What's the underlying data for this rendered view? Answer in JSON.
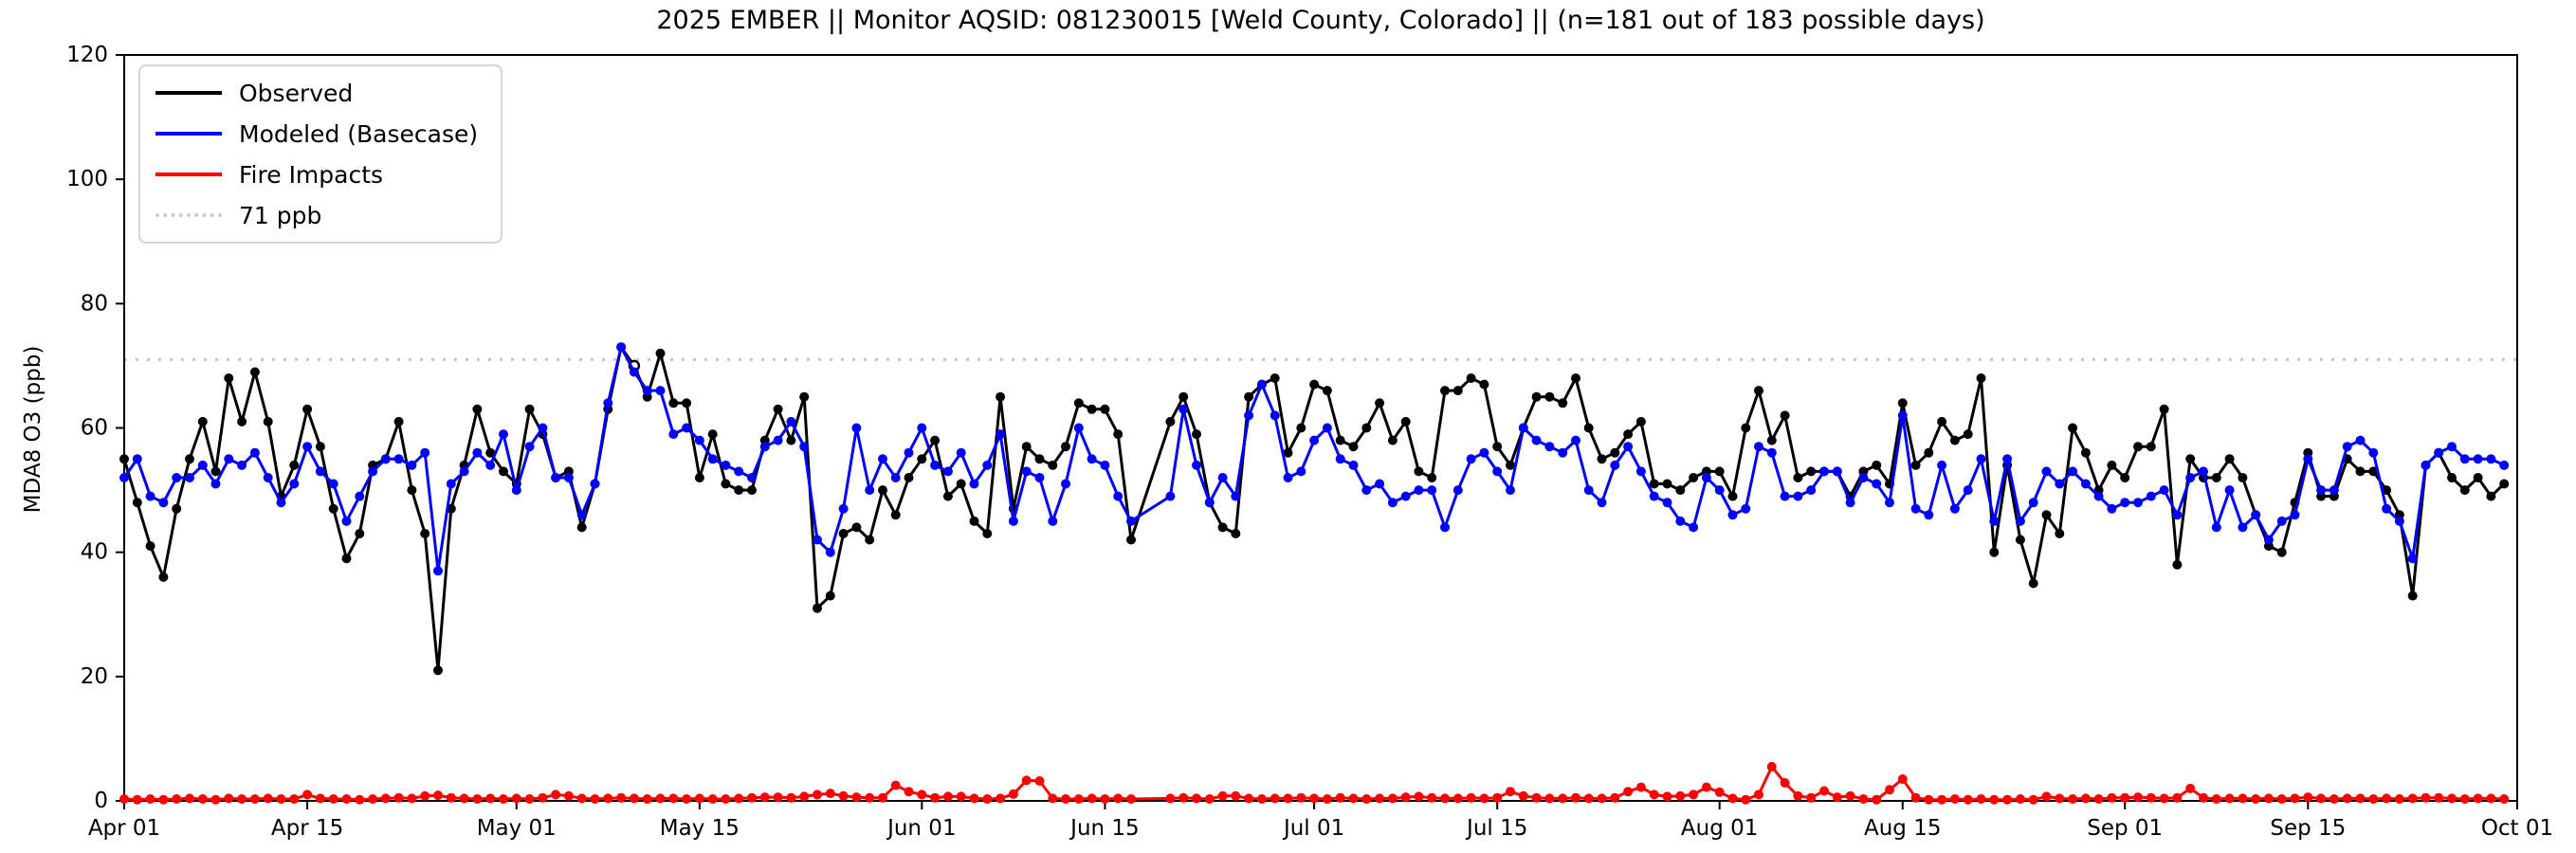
{
  "chart_data": {
    "type": "line",
    "title": "2025 EMBER || Monitor AQSID: 081230015 [Weld County, Colorado] || (n=181 out of 183 possible days)",
    "xlabel": "",
    "ylabel": "MDA8 O3 (ppb)",
    "ylim": [
      0,
      120
    ],
    "yticks": [
      0,
      20,
      40,
      60,
      80,
      100,
      120
    ],
    "x_total_days": 183,
    "xticks": [
      {
        "day": 0,
        "label": "Apr 01"
      },
      {
        "day": 14,
        "label": "Apr 15"
      },
      {
        "day": 30,
        "label": "May 01"
      },
      {
        "day": 44,
        "label": "May 15"
      },
      {
        "day": 61,
        "label": "Jun 01"
      },
      {
        "day": 75,
        "label": "Jun 15"
      },
      {
        "day": 91,
        "label": "Jul 01"
      },
      {
        "day": 105,
        "label": "Jul 15"
      },
      {
        "day": 122,
        "label": "Aug 01"
      },
      {
        "day": 136,
        "label": "Aug 15"
      },
      {
        "day": 153,
        "label": "Sep 01"
      },
      {
        "day": 167,
        "label": "Sep 15"
      },
      {
        "day": 183,
        "label": "Oct 01"
      }
    ],
    "grid": false,
    "legend_position": "upper-left",
    "threshold": {
      "value": 71,
      "label": "71 ppb",
      "color": "#c9c9c9",
      "style": "dotted"
    },
    "missing_days_note": "two days (mid June) have no data; n=181 of 183",
    "open_marker": {
      "series": "Observed",
      "day_index": 39,
      "note": "white-faced marker at ~71 ppb in early May"
    },
    "series": [
      {
        "name": "Observed",
        "color": "#000000",
        "marker": "circle",
        "values": [
          55,
          48,
          41,
          36,
          47,
          55,
          61,
          53,
          68,
          61,
          69,
          61,
          49,
          54,
          63,
          57,
          47,
          39,
          43,
          54,
          55,
          61,
          50,
          43,
          21,
          47,
          54,
          63,
          56,
          53,
          51,
          63,
          59,
          52,
          53,
          44,
          51,
          63,
          73,
          70,
          65,
          72,
          64,
          64,
          52,
          59,
          51,
          50,
          50,
          58,
          63,
          58,
          65,
          31,
          33,
          43,
          44,
          42,
          50,
          46,
          52,
          55,
          58,
          49,
          51,
          45,
          43,
          65,
          47,
          57,
          55,
          54,
          57,
          64,
          63,
          63,
          59,
          42,
          null,
          null,
          61,
          65,
          59,
          48,
          44,
          43,
          65,
          67,
          68,
          56,
          60,
          67,
          66,
          58,
          57,
          60,
          64,
          58,
          61,
          53,
          52,
          66,
          66,
          68,
          67,
          57,
          54,
          60,
          65,
          65,
          64,
          68,
          60,
          55,
          56,
          59,
          61,
          51,
          51,
          50,
          52,
          53,
          53,
          49,
          60,
          66,
          58,
          62,
          52,
          53,
          53,
          53,
          49,
          53,
          54,
          51,
          64,
          54,
          56,
          61,
          58,
          59,
          68,
          40,
          54,
          42,
          35,
          46,
          43,
          60,
          56,
          50,
          54,
          52,
          57,
          57,
          63,
          38,
          55,
          52,
          52,
          55,
          52,
          46,
          41,
          40,
          48,
          56,
          49,
          49,
          55,
          53,
          53,
          50,
          46,
          33,
          54,
          56,
          52,
          50,
          52,
          49,
          51
        ]
      },
      {
        "name": "Modeled (Basecase)",
        "color": "#0000ff",
        "marker": "circle",
        "values": [
          52,
          55,
          49,
          48,
          52,
          52,
          54,
          51,
          55,
          54,
          56,
          52,
          48,
          51,
          57,
          53,
          51,
          45,
          49,
          53,
          55,
          55,
          54,
          56,
          37,
          51,
          53,
          56,
          54,
          59,
          50,
          57,
          60,
          52,
          52,
          46,
          51,
          64,
          73,
          69,
          66,
          66,
          59,
          60,
          58,
          55,
          54,
          53,
          52,
          57,
          58,
          61,
          57,
          42,
          40,
          47,
          60,
          50,
          55,
          52,
          56,
          60,
          54,
          53,
          56,
          51,
          54,
          59,
          45,
          53,
          52,
          45,
          51,
          60,
          55,
          54,
          49,
          45,
          null,
          null,
          49,
          63,
          54,
          48,
          52,
          49,
          62,
          67,
          62,
          52,
          53,
          58,
          60,
          55,
          54,
          50,
          51,
          48,
          49,
          50,
          50,
          44,
          50,
          55,
          56,
          53,
          50,
          60,
          58,
          57,
          56,
          58,
          50,
          48,
          54,
          57,
          53,
          49,
          48,
          45,
          44,
          52,
          50,
          46,
          47,
          57,
          56,
          49,
          49,
          50,
          53,
          53,
          48,
          52,
          51,
          48,
          62,
          47,
          46,
          54,
          47,
          50,
          55,
          45,
          55,
          45,
          48,
          53,
          51,
          53,
          51,
          49,
          47,
          48,
          48,
          49,
          50,
          46,
          52,
          53,
          44,
          50,
          44,
          46,
          42,
          45,
          46,
          55,
          50,
          50,
          57,
          58,
          56,
          47,
          45,
          39,
          54,
          56,
          57,
          55,
          55,
          55,
          54
        ]
      },
      {
        "name": "Fire Impacts",
        "color": "#ff0000",
        "marker": "circle",
        "values": [
          0.3,
          0.2,
          0.3,
          0.2,
          0.3,
          0.4,
          0.3,
          0.2,
          0.4,
          0.3,
          0.3,
          0.4,
          0.3,
          0.3,
          1.0,
          0.4,
          0.3,
          0.3,
          0.2,
          0.3,
          0.4,
          0.5,
          0.4,
          0.8,
          0.9,
          0.5,
          0.4,
          0.3,
          0.4,
          0.3,
          0.4,
          0.3,
          0.5,
          1.0,
          0.8,
          0.4,
          0.3,
          0.4,
          0.5,
          0.4,
          0.3,
          0.4,
          0.4,
          0.3,
          0.4,
          0.3,
          0.3,
          0.4,
          0.5,
          0.6,
          0.6,
          0.5,
          0.7,
          1.0,
          1.2,
          0.8,
          0.6,
          0.5,
          0.5,
          2.5,
          1.5,
          1.0,
          0.5,
          0.7,
          0.7,
          0.4,
          0.3,
          0.4,
          1.1,
          3.3,
          3.2,
          0.4,
          0.3,
          0.3,
          0.4,
          0.3,
          0.4,
          0.3,
          null,
          null,
          0.4,
          0.5,
          0.4,
          0.3,
          0.8,
          0.8,
          0.4,
          0.3,
          0.4,
          0.4,
          0.5,
          0.4,
          0.3,
          0.5,
          0.4,
          0.3,
          0.4,
          0.4,
          0.6,
          0.7,
          0.5,
          0.4,
          0.4,
          0.5,
          0.4,
          0.5,
          1.5,
          0.8,
          0.5,
          0.4,
          0.4,
          0.5,
          0.4,
          0.4,
          0.5,
          1.5,
          2.2,
          1.0,
          0.7,
          0.8,
          1.0,
          2.2,
          1.4,
          0.4,
          0.2,
          1.0,
          5.5,
          2.9,
          0.8,
          0.5,
          1.6,
          0.6,
          0.8,
          0.3,
          0.2,
          1.8,
          3.5,
          0.5,
          0.2,
          0.2,
          0.3,
          0.2,
          0.3,
          0.2,
          0.2,
          0.3,
          0.2,
          0.7,
          0.4,
          0.3,
          0.4,
          0.3,
          0.5,
          0.5,
          0.6,
          0.5,
          0.4,
          0.5,
          2.0,
          0.5,
          0.3,
          0.4,
          0.4,
          0.3,
          0.4,
          0.3,
          0.4,
          0.6,
          0.4,
          0.3,
          0.4,
          0.4,
          0.3,
          0.4,
          0.3,
          0.4,
          0.5,
          0.5,
          0.4,
          0.3,
          0.4,
          0.4,
          0.3
        ]
      }
    ]
  },
  "legend": {
    "items": [
      {
        "label": "Observed",
        "color": "#000000",
        "style": "solid"
      },
      {
        "label": "Modeled (Basecase)",
        "color": "#0000ff",
        "style": "solid"
      },
      {
        "label": "Fire Impacts",
        "color": "#ff0000",
        "style": "solid"
      },
      {
        "label": "71 ppb",
        "color": "#c9c9c9",
        "style": "dotted"
      }
    ]
  }
}
